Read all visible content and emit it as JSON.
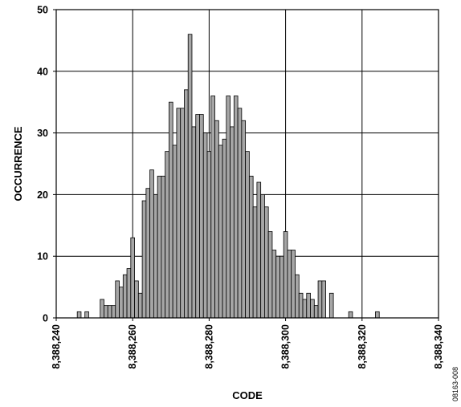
{
  "chart_data": {
    "type": "bar",
    "title": "",
    "xlabel": "CODE",
    "ylabel": "OCCURRENCE",
    "figure_id": "08163-008",
    "xlim": [
      8388240,
      8388340
    ],
    "ylim": [
      0,
      50
    ],
    "x_ticks": [
      8388240,
      8388260,
      8388280,
      8388300,
      8388320,
      8388340
    ],
    "x_tick_labels": [
      "8,388,240",
      "8,388,260",
      "8,388,280",
      "8,388,300",
      "8,388,320",
      "8,388,340"
    ],
    "y_ticks": [
      0,
      10,
      20,
      30,
      40,
      50
    ],
    "y_tick_labels": [
      "0",
      "10",
      "20",
      "30",
      "40",
      "50"
    ],
    "grid": true,
    "colors": {
      "bar_fill": "#a6a6a6",
      "bar_stroke": "#000000",
      "axis": "#000000"
    },
    "codes": [
      8388246,
      8388248,
      8388252,
      8388253,
      8388254,
      8388255,
      8388256,
      8388257,
      8388258,
      8388259,
      8388260,
      8388261,
      8388262,
      8388263,
      8388264,
      8388265,
      8388266,
      8388267,
      8388268,
      8388269,
      8388270,
      8388271,
      8388272,
      8388273,
      8388274,
      8388275,
      8388276,
      8388277,
      8388278,
      8388279,
      8388280,
      8388281,
      8388282,
      8388283,
      8388284,
      8388285,
      8388286,
      8388287,
      8388288,
      8388289,
      8388290,
      8388291,
      8388292,
      8388293,
      8388294,
      8388295,
      8388296,
      8388297,
      8388298,
      8388299,
      8388300,
      8388301,
      8388302,
      8388303,
      8388304,
      8388305,
      8388306,
      8388307,
      8388308,
      8388309,
      8388310,
      8388312,
      8388317,
      8388324
    ],
    "values": [
      1,
      1,
      3,
      2,
      2,
      2,
      6,
      5,
      7,
      8,
      13,
      6,
      4,
      19,
      21,
      24,
      20,
      23,
      23,
      27,
      35,
      28,
      34,
      34,
      37,
      46,
      31,
      33,
      33,
      30,
      27,
      36,
      32,
      28,
      29,
      36,
      31,
      36,
      34,
      32,
      27,
      23,
      18,
      22,
      20,
      18,
      14,
      11,
      10,
      10,
      14,
      11,
      11,
      7,
      4,
      3,
      4,
      3,
      2,
      6,
      6,
      4,
      1,
      1
    ]
  }
}
